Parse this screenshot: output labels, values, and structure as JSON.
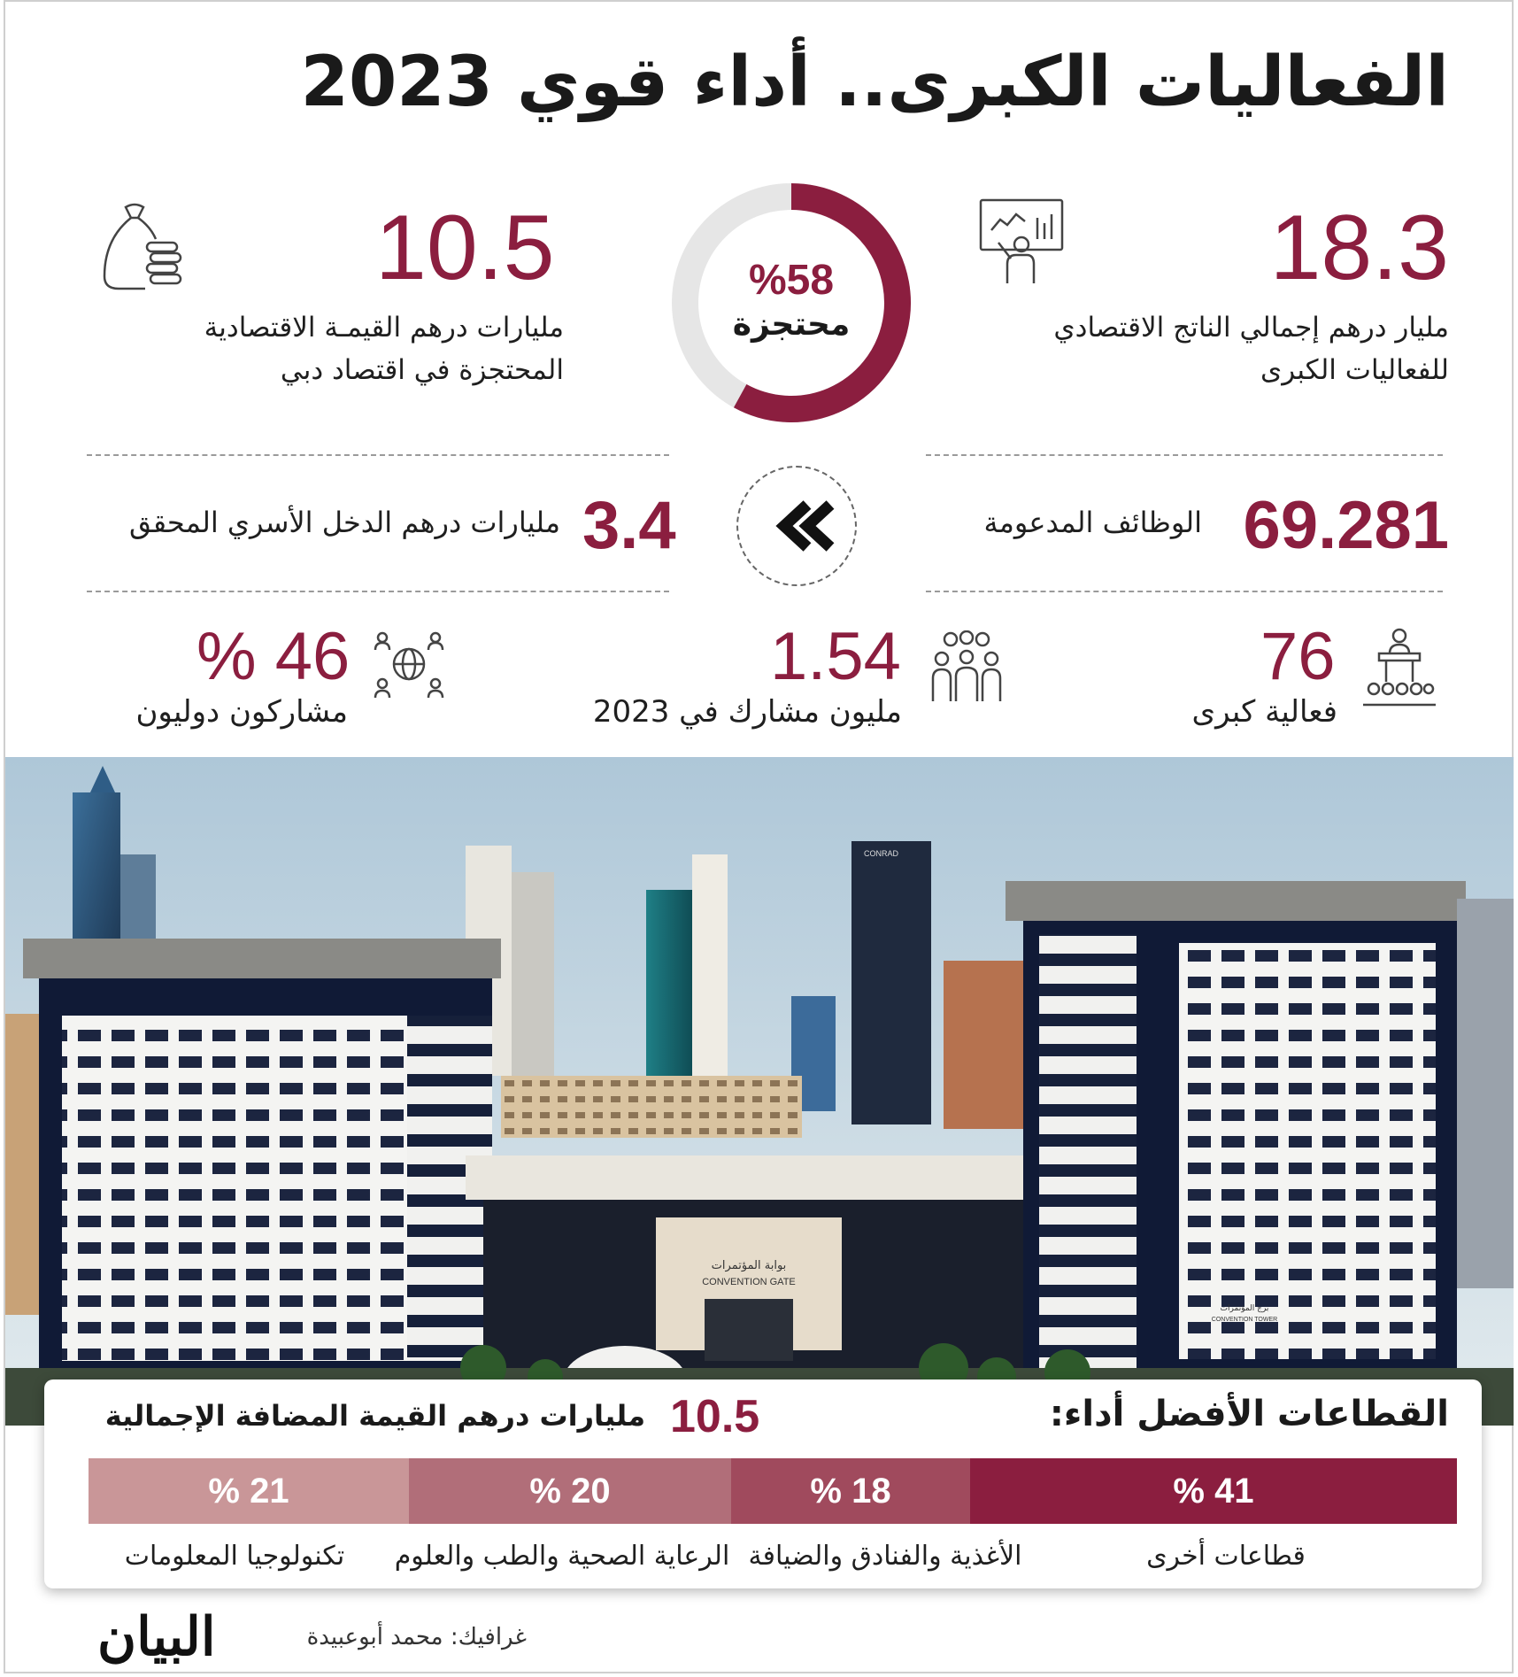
{
  "title": "الفعاليات الكبرى.. أداء قوي 2023",
  "colors": {
    "accent": "#8b1e3f",
    "seg_41": "#8b1e3f",
    "seg_18": "#a04a5d",
    "seg_20": "#b16e79",
    "seg_21": "#c99698",
    "donut_bg": "#e6e6e6"
  },
  "stats": {
    "gdp": {
      "value": "18.3",
      "line1": "مليار درهم إجمالي الناتج الاقتصادي",
      "line2": "للفعاليات الكبرى",
      "icon": "presenter-board-icon"
    },
    "retained": {
      "value": "10.5",
      "line1": "مليارات درهم القيمـة الاقتصادية",
      "line2": "المحتجزة في اقتصاد دبي",
      "icon": "money-bag-coins-icon"
    },
    "donut": {
      "value": "%58",
      "label": "محتجزة",
      "fraction": 0.58
    },
    "jobs": {
      "value": "69.281",
      "label": "الوظائف المدعومة"
    },
    "household": {
      "value": "3.4",
      "label": "مليارات درهم الدخل الأسري المحقق"
    },
    "events": {
      "value": "76",
      "label": "فعالية كبرى",
      "icon": "podium-audience-icon"
    },
    "participants": {
      "value": "1.54",
      "label": "مليون مشارك في 2023",
      "icon": "crowd-icon"
    },
    "international": {
      "value": "% 46",
      "label": "مشاركون دوليون",
      "icon": "globe-people-icon"
    }
  },
  "photo": {
    "gate_sign_ar": "بوابة المؤتمرات",
    "gate_sign_en": "CONVENTION GATE",
    "tower_sign_ar": "برج المؤتمرات",
    "tower_sign_en": "CONVENTION TOWER",
    "conrad": "CONRAD"
  },
  "sectors": {
    "heading": "القطاعات الأفضل أداء:",
    "gva_value": "10.5",
    "gva_label": "مليارات درهم القيمة المضافة الإجمالية",
    "items": [
      {
        "pct": "% 41",
        "label": "قطاعات أخرى",
        "share": 41
      },
      {
        "pct": "% 18",
        "label": "الأغذية والفنادق والضيافة",
        "share": 18
      },
      {
        "pct": "% 20",
        "label": "الرعاية الصحية والطب والعلوم",
        "share": 20
      },
      {
        "pct": "% 21",
        "label": "تكنولوجيا المعلومات",
        "share": 21
      }
    ]
  },
  "footer": {
    "credit": "غرافيك: محمد أبوعبيدة",
    "logo": "البيان"
  }
}
